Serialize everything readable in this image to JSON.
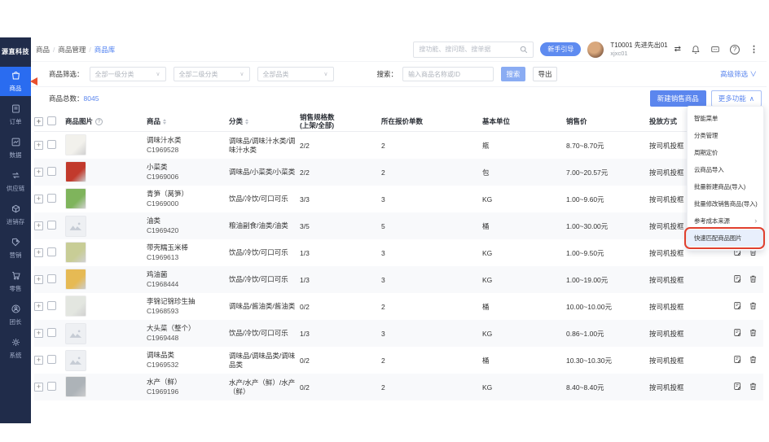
{
  "app": {
    "logo": "源直科技"
  },
  "glyphs": {
    "chevron_down": "∨",
    "chevron_up": "∧",
    "submenu": "›",
    "dots": "⋮",
    "help": "?",
    "plus": "+",
    "swap": "⇄"
  },
  "sidebar": {
    "items": [
      {
        "label": "商品",
        "icon": "goods",
        "active": true
      },
      {
        "label": "订单",
        "icon": "order"
      },
      {
        "label": "数据",
        "icon": "data"
      },
      {
        "label": "供应链",
        "icon": "supply"
      },
      {
        "label": "进销存",
        "icon": "inventory"
      },
      {
        "label": "营销",
        "icon": "marketing"
      },
      {
        "label": "零售",
        "icon": "retail"
      },
      {
        "label": "团长",
        "icon": "leader"
      },
      {
        "label": "系统",
        "icon": "system"
      }
    ]
  },
  "topbar": {
    "breadcrumb": [
      "商品",
      "商品管理",
      "商品库"
    ],
    "search_placeholder": "搜功能、搜问题、搜单据",
    "guide_button": "新手引导",
    "user": {
      "line1": "T10001 先进先出01",
      "line2": "xjxc01"
    }
  },
  "filters": {
    "label": "商品筛选：",
    "dropdowns": [
      "全部一级分类",
      "全部二级分类",
      "全部品类"
    ],
    "search_label": "搜索：",
    "search_placeholder": "输入商品名称或ID",
    "search_button": "搜索",
    "export_button": "导出",
    "advanced": "高级筛选"
  },
  "toolbar": {
    "total_label": "商品总数：",
    "total_value": "8045",
    "create_button": "新建销售商品",
    "more_button": "更多功能"
  },
  "menu": {
    "items": [
      {
        "label": "智能菜单"
      },
      {
        "label": "分类管理"
      },
      {
        "label": "周期定价"
      },
      {
        "label": "云商品导入"
      },
      {
        "label": "批量新建商品(导入)"
      },
      {
        "label": "批量修改销售商品(导入)"
      },
      {
        "label": "参考成本来源",
        "submenu": true
      },
      {
        "label": "快速匹配商品图片",
        "highlighted": true
      }
    ]
  },
  "table": {
    "headers": {
      "image": "商品图片",
      "product": "商品",
      "category": "分类",
      "spec_line1": "销售规格数",
      "spec_line2": "(上架/全部)",
      "quotes": "所在报价单数",
      "unit": "基本单位",
      "price": "销售价",
      "method": "投放方式"
    },
    "rows": [
      {
        "name": "调味汁水类",
        "code": "C1969528",
        "category": "调味品/调味汁水类/调味汁水类",
        "spec": "2/2",
        "quotes": "2",
        "unit": "瓶",
        "price": "8.70~8.70元",
        "method": "按司机投框",
        "img": {
          "kind": "photo",
          "color": "#f2f1ec"
        }
      },
      {
        "name": "小菜类",
        "code": "C1969006",
        "category": "调味品/小菜类/小菜类",
        "spec": "2/2",
        "quotes": "2",
        "unit": "包",
        "price": "7.00~20.57元",
        "method": "按司机投框",
        "img": {
          "kind": "photo",
          "color": "#c23a2c"
        }
      },
      {
        "name": "青笋（莴笋）",
        "code": "C1969000",
        "category": "饮品/冷饮/可口可乐",
        "spec": "3/3",
        "quotes": "3",
        "unit": "KG",
        "price": "1.00~9.60元",
        "method": "按司机投框",
        "img": {
          "kind": "photo",
          "color": "#7fb45c"
        }
      },
      {
        "name": "油类",
        "code": "C1969420",
        "category": "粮油副食/油类/油类",
        "spec": "3/5",
        "quotes": "5",
        "unit": "桶",
        "price": "1.00~30.00元",
        "method": "按司机投框",
        "img": {
          "kind": "placeholder"
        }
      },
      {
        "name": "带壳糯玉米棒",
        "code": "C1969613",
        "category": "饮品/冷饮/可口可乐",
        "spec": "1/3",
        "quotes": "3",
        "unit": "KG",
        "price": "1.00~9.50元",
        "method": "按司机投框",
        "img": {
          "kind": "photo",
          "color": "#c8cd96"
        }
      },
      {
        "name": "鸡油菌",
        "code": "C1968444",
        "category": "饮品/冷饮/可口可乐",
        "spec": "1/3",
        "quotes": "3",
        "unit": "KG",
        "price": "1.00~19.00元",
        "method": "按司机投框",
        "img": {
          "kind": "photo",
          "color": "#e6ba54"
        }
      },
      {
        "name": "李锦记锦珍生抽",
        "code": "C1968593",
        "category": "调味品/酱油类/酱油类",
        "spec": "0/2",
        "quotes": "2",
        "unit": "桶",
        "price": "10.00~10.00元",
        "method": "按司机投框",
        "img": {
          "kind": "photo",
          "color": "#e3e6e0"
        }
      },
      {
        "name": "大头菜（整个）",
        "code": "C1969448",
        "category": "饮品/冷饮/可口可乐",
        "spec": "1/3",
        "quotes": "3",
        "unit": "KG",
        "price": "0.86~1.00元",
        "method": "按司机投框",
        "img": {
          "kind": "placeholder"
        }
      },
      {
        "name": "调味品类",
        "code": "C1969532",
        "category": "调味品/调味品类/调味品类",
        "spec": "0/2",
        "quotes": "2",
        "unit": "桶",
        "price": "10.30~10.30元",
        "method": "按司机投框",
        "img": {
          "kind": "placeholder"
        }
      },
      {
        "name": "水产（鲜）",
        "code": "C1969196",
        "category": "水产/水产（鲜）/水产（鲜）",
        "spec": "0/2",
        "quotes": "2",
        "unit": "KG",
        "price": "8.40~8.40元",
        "method": "按司机投框",
        "img": {
          "kind": "photo",
          "color": "#adb3b8"
        }
      }
    ]
  },
  "colors": {
    "accent": "#2a6cf0",
    "sidebar": "#202c4a",
    "annotation": "#e0402e"
  }
}
